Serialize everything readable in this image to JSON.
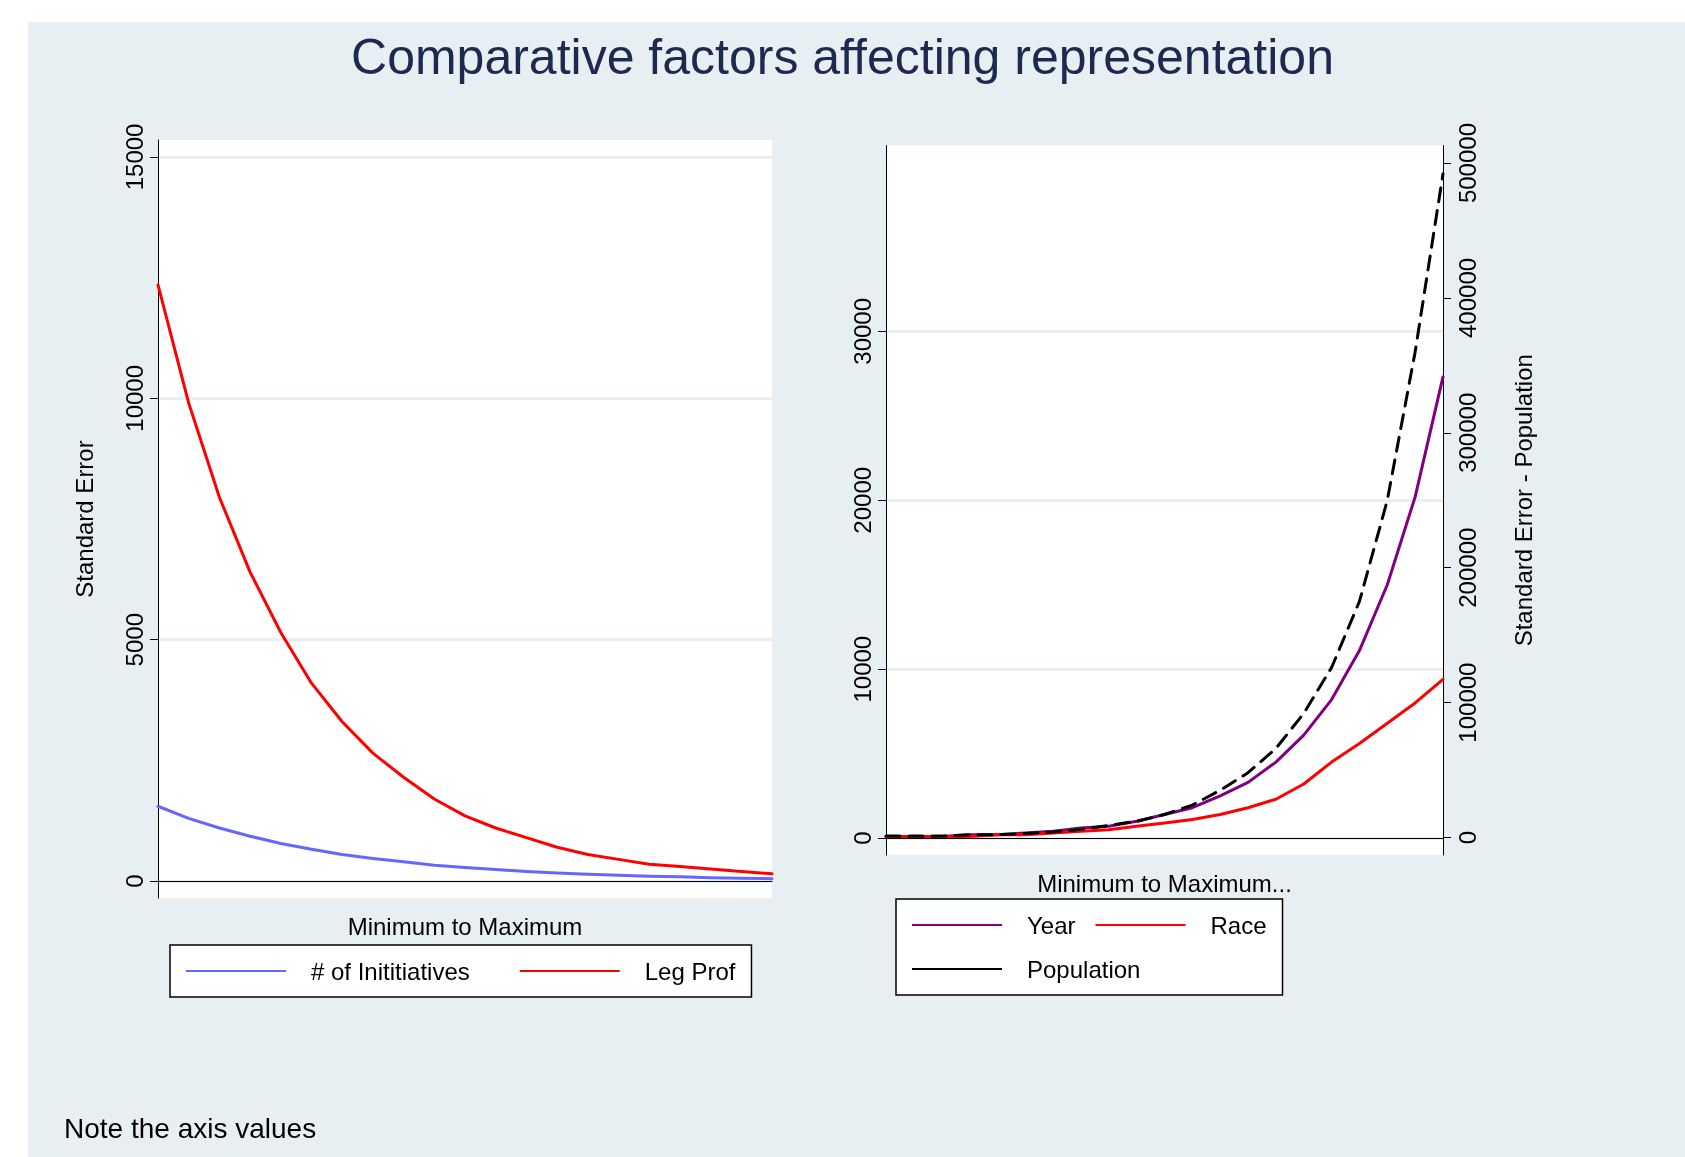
{
  "chart_data": [
    {
      "type": "line",
      "title": "Comparative factors affecting representation",
      "annotations": [
        "Note the axis values"
      ],
      "xlabel": "Minimum to Maximum",
      "ylabel": "Standard Error",
      "categories": [
        null,
        null,
        null,
        null,
        null,
        null,
        null,
        null,
        null,
        null,
        null,
        null,
        null,
        null,
        null,
        null,
        null,
        null,
        null,
        null,
        null
      ],
      "series": [
        {
          "name": "# of Inititiatives",
          "color": "#6666ff",
          "values": [
            1550,
            1300,
            1100,
            930,
            780,
            660,
            550,
            470,
            400,
            330,
            280,
            240,
            200,
            170,
            140,
            120,
            100,
            90,
            70,
            60,
            50
          ]
        },
        {
          "name": "Leg Prof",
          "color": "#ff0000",
          "values": [
            12350,
            9900,
            7950,
            6400,
            5150,
            4100,
            3300,
            2650,
            2150,
            1700,
            1350,
            1100,
            900,
            700,
            550,
            450,
            350,
            300,
            250,
            200,
            150
          ]
        }
      ],
      "ylim": [
        -350,
        15350
      ],
      "yticks": [
        0,
        5000,
        10000,
        15000
      ],
      "grid": "y",
      "legend": "bottom",
      "marker": "none",
      "line_style": "solid"
    },
    {
      "type": "line",
      "xlabel": "Minimum to Maximum...",
      "y2label": "Standard Error - Population",
      "categories": [
        null,
        null,
        null,
        null,
        null,
        null,
        null,
        null,
        null,
        null,
        null,
        null,
        null,
        null,
        null,
        null,
        null,
        null,
        null,
        null,
        null
      ],
      "series": [
        {
          "name": "Year",
          "color": "#800080",
          "values": [
            100,
            100,
            100,
            200,
            200,
            300,
            400,
            600,
            700,
            1000,
            1400,
            1800,
            2500,
            3300,
            4500,
            6100,
            8200,
            11100,
            15000,
            20200,
            27300
          ]
        },
        {
          "name": "Race",
          "color": "#ff0000",
          "values": [
            100,
            100,
            100,
            100,
            200,
            200,
            300,
            400,
            500,
            700,
            900,
            1100,
            1400,
            1800,
            2300,
            3200,
            4500,
            5600,
            6800,
            8000,
            9400
          ]
        },
        {
          "name": "Population",
          "color": "#000000",
          "axis": "y2",
          "line_style": "dashed",
          "values": [
            1000,
            1000,
            1000,
            2000,
            2000,
            3000,
            4000,
            6000,
            9000,
            12000,
            17000,
            24000,
            35000,
            48000,
            66000,
            92000,
            126000,
            175000,
            250000,
            360000,
            492000
          ]
        }
      ],
      "ylim": [
        -1000,
        41000
      ],
      "yticks": [
        0,
        10000,
        20000,
        30000
      ],
      "y2lim": [
        -13000,
        513000
      ],
      "y2ticks": [
        0,
        100000,
        200000,
        300000,
        400000,
        500000
      ],
      "grid": "y",
      "legend": "bottom",
      "marker": "none",
      "line_style": "solid"
    }
  ]
}
